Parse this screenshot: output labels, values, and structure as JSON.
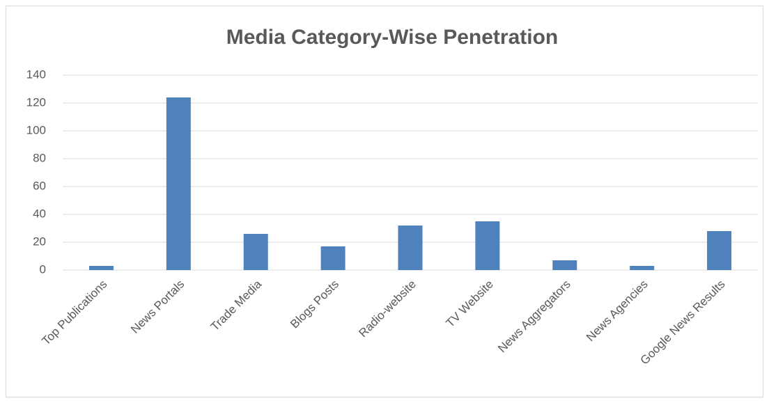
{
  "chart_data": {
    "type": "bar",
    "title": "Media Category-Wise Penetration",
    "categories": [
      "Top Publications",
      "News Portals",
      "Trade Media",
      "Blogs Posts",
      "Radio-website",
      "TV Website",
      "News Aggregators",
      "News Agencies",
      "Google News Results"
    ],
    "values": [
      3,
      124,
      26,
      17,
      32,
      35,
      7,
      3,
      28
    ],
    "color": "#4f81bd",
    "ylim": [
      0,
      140
    ],
    "yticks": [
      0,
      20,
      40,
      60,
      80,
      100,
      120,
      140
    ],
    "grid": true
  }
}
